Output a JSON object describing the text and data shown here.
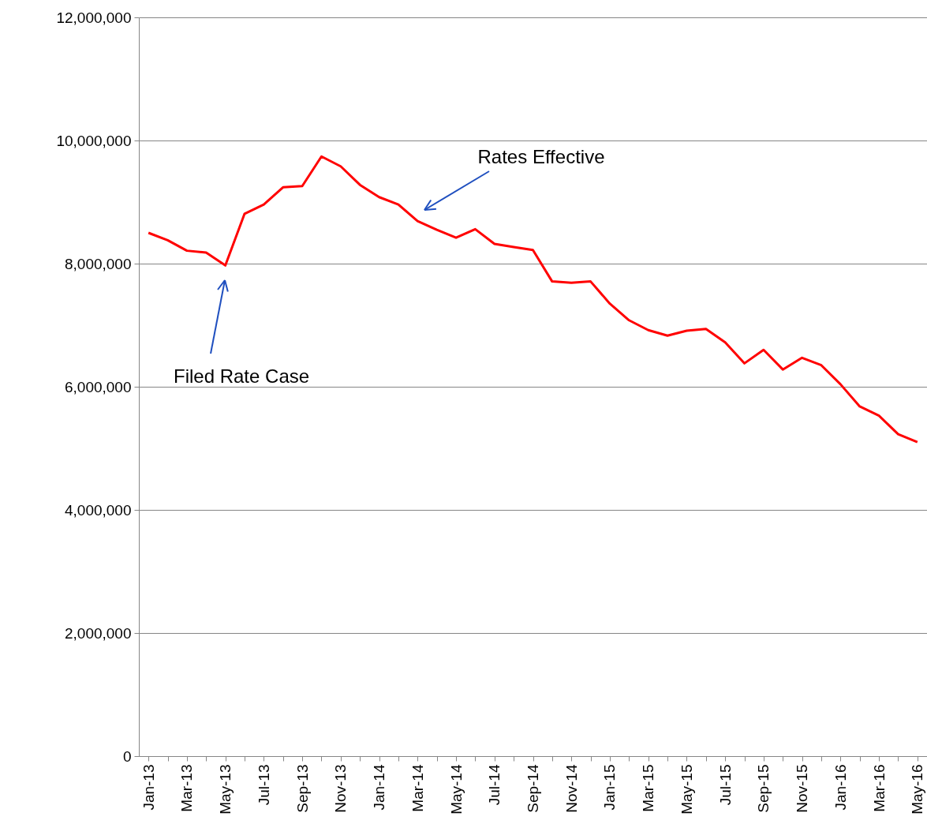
{
  "chart_data": {
    "type": "line",
    "categories": [
      "Jan-13",
      null,
      "Mar-13",
      null,
      "May-13",
      null,
      "Jul-13",
      null,
      "Sep-13",
      null,
      "Nov-13",
      null,
      "Jan-14",
      null,
      "Mar-14",
      null,
      "May-14",
      null,
      "Jul-14",
      null,
      "Sep-14",
      null,
      "Nov-14",
      null,
      "Jan-15",
      null,
      "Mar-15",
      null,
      "May-15",
      null,
      "Jul-15",
      null,
      "Sep-15",
      null,
      "Nov-15",
      null,
      "Jan-16",
      null,
      "Mar-16",
      null,
      "May-16"
    ],
    "series": [
      {
        "color": "#ff0000",
        "values": [
          8500000,
          8380000,
          8210000,
          8180000,
          7970000,
          8810000,
          8960000,
          9240000,
          9260000,
          9740000,
          9580000,
          9280000,
          9080000,
          8960000,
          8690000,
          8550000,
          8420000,
          8560000,
          8320000,
          8270000,
          8220000,
          7710000,
          7690000,
          7710000,
          7350000,
          7080000,
          6920000,
          6830000,
          6910000,
          6940000,
          6720000,
          6380000,
          6600000,
          6280000,
          6470000,
          6350000,
          6040000,
          5680000,
          5530000,
          5230000,
          5100000
        ]
      }
    ],
    "ylim": [
      0,
      12000000
    ],
    "yticks": [
      0,
      {
        "value": 2000000,
        "label": "2,000,000"
      },
      {
        "value": 4000000,
        "label": "4,000,000"
      },
      {
        "value": 6000000,
        "label": "6,000,000"
      },
      {
        "value": 8000000,
        "label": "8,000,000"
      },
      {
        "value": 10000000,
        "label": "10,000,000"
      },
      {
        "value": 12000000,
        "label": "12,000,000"
      }
    ],
    "grid": "y",
    "marker": "none",
    "line_style": "solid",
    "annotations": [
      "Filed Rate Case",
      "Rates Effective"
    ]
  }
}
